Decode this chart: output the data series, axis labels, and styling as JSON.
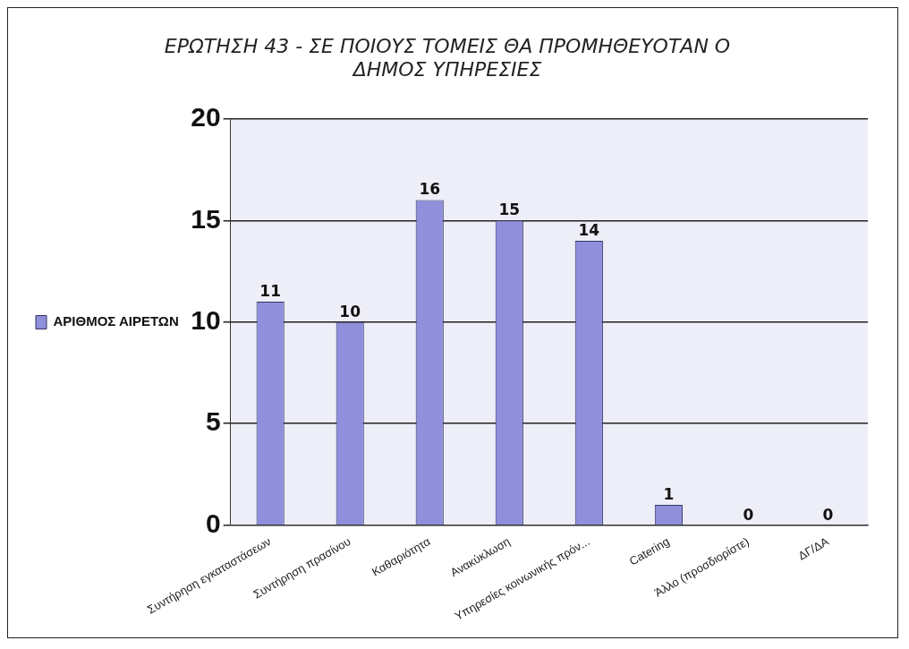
{
  "chart_data": {
    "type": "bar",
    "title": [
      "ΕΡΩΤΗΣΗ 43 - ΣΕ ΠΟΙΟΥΣ ΤΟΜΕΙΣ ΘΑ ΠΡΟΜΗΘΕΥΟΤΑΝ Ο",
      "ΔΗΜΟΣ ΥΠΗΡΕΣΙΕΣ"
    ],
    "categories": [
      "Συντήρηση εγκαταστάσεων",
      "Συντήρηση πρασίνου",
      "Καθαριότητα",
      "Ανακύκλωση",
      "Υπηρεσίες κοινωνικής πρόν...",
      "Catering",
      "Άλλο (προσδιορίστε)",
      "ΔΓ/ΔΑ"
    ],
    "series": [
      {
        "name": "ΑΡΙΘΜΟΣ ΑΙΡΕΤΩΝ",
        "color": "#8f8fdb",
        "values": [
          11,
          10,
          16,
          15,
          14,
          1,
          0,
          0
        ]
      }
    ],
    "ylim": [
      0,
      20
    ],
    "yticks": [
      0,
      5,
      10,
      15,
      20
    ],
    "grid": "y",
    "legend": "left",
    "data_labels": true
  }
}
